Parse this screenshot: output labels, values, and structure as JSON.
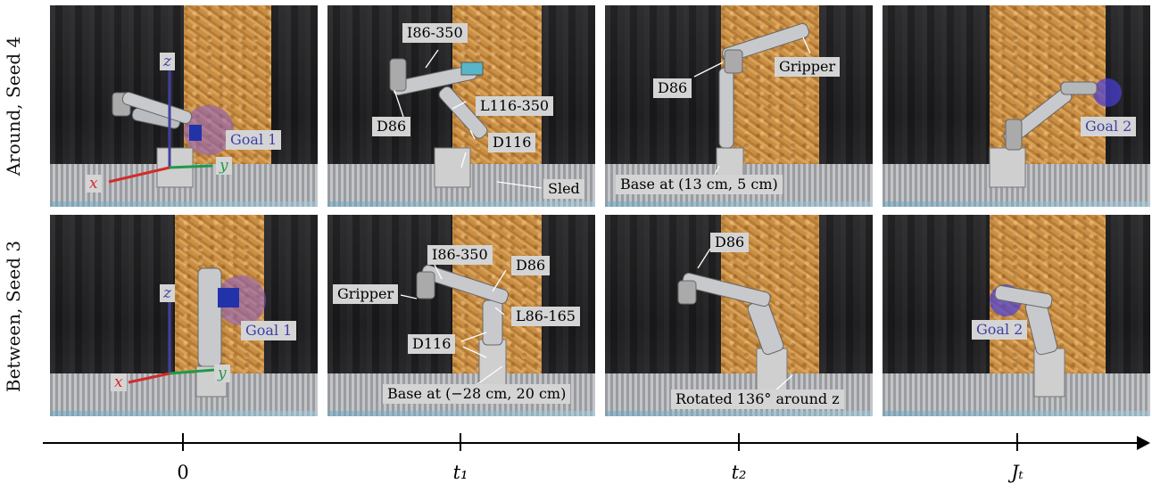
{
  "rows": [
    {
      "label": "Around, Seed 4",
      "panels": [
        {
          "labels": [
            {
              "text": "Goal 1",
              "kind": "goal"
            }
          ],
          "axes": {
            "z": "z",
            "x": "x",
            "y": "y"
          }
        },
        {
          "labels": [
            {
              "text": "I86-350"
            },
            {
              "text": "L116-350"
            },
            {
              "text": "D86"
            },
            {
              "text": "D116"
            },
            {
              "text": "Sled"
            }
          ]
        },
        {
          "labels": [
            {
              "text": "D86"
            },
            {
              "text": "Gripper"
            },
            {
              "text": "Base at (13 cm, 5 cm)"
            }
          ]
        },
        {
          "labels": [
            {
              "text": "Goal 2",
              "kind": "goal"
            }
          ]
        }
      ]
    },
    {
      "label": "Between, Seed 3",
      "panels": [
        {
          "labels": [
            {
              "text": "Goal 1",
              "kind": "goal"
            }
          ],
          "axes": {
            "z": "z",
            "x": "x",
            "y": "y"
          }
        },
        {
          "labels": [
            {
              "text": "I86-350"
            },
            {
              "text": "D86"
            },
            {
              "text": "Gripper"
            },
            {
              "text": "L86-165"
            },
            {
              "text": "D116"
            },
            {
              "text": "Base at (−28 cm, 20 cm)"
            }
          ]
        },
        {
          "labels": [
            {
              "text": "D86"
            },
            {
              "text": "Rotated 136° around z"
            }
          ]
        },
        {
          "labels": [
            {
              "text": "Goal 2",
              "kind": "goal"
            }
          ]
        }
      ]
    }
  ],
  "timeline": {
    "ticks": [
      "0",
      "t₁",
      "t₂",
      "Jₜ"
    ]
  },
  "colors": {
    "goal": "#3e3fa6",
    "axis_x": "#d22b2b",
    "axis_y": "#1f9a4a",
    "axis_z": "#4040a0"
  }
}
